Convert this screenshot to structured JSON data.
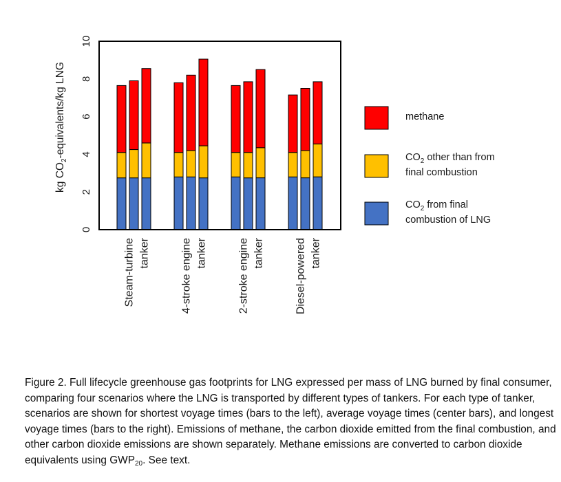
{
  "chart_data": {
    "type": "bar",
    "stacked": true,
    "ylabel_parts": [
      "kg CO",
      "2",
      "-equivalents/kg LNG"
    ],
    "ylim": [
      0,
      10
    ],
    "yticks": [
      "0",
      "2",
      "4",
      "6",
      "8",
      "10"
    ],
    "groups": [
      {
        "label_lines": [
          "Steam-turbine",
          "tanker"
        ]
      },
      {
        "label_lines": [
          "4-stroke engine",
          "tanker"
        ]
      },
      {
        "label_lines": [
          "2-stroke engine",
          "tanker"
        ]
      },
      {
        "label_lines": [
          "Diesel-powered",
          "tanker"
        ]
      }
    ],
    "bars_per_group": [
      "shortest voyage",
      "average voyage",
      "longest voyage"
    ],
    "series": [
      {
        "name": "CO2 from final combustion of LNG",
        "color": "#4472C4",
        "values": [
          [
            2.75,
            2.75,
            2.75
          ],
          [
            2.8,
            2.8,
            2.75
          ],
          [
            2.8,
            2.75,
            2.75
          ],
          [
            2.8,
            2.75,
            2.8
          ]
        ]
      },
      {
        "name": "CO2 other than from final combustion",
        "color": "#FFC000",
        "values": [
          [
            1.35,
            1.5,
            1.85
          ],
          [
            1.3,
            1.4,
            1.7
          ],
          [
            1.3,
            1.35,
            1.6
          ],
          [
            1.3,
            1.45,
            1.75
          ]
        ]
      },
      {
        "name": "methane",
        "color": "#FF0000",
        "values": [
          [
            3.55,
            3.65,
            3.95
          ],
          [
            3.7,
            4.0,
            4.6
          ],
          [
            3.55,
            3.75,
            4.15
          ],
          [
            3.05,
            3.3,
            3.3
          ]
        ]
      }
    ],
    "legend": [
      {
        "color": "#FF0000",
        "lines": [
          [
            "methane"
          ]
        ]
      },
      {
        "color": "#FFC000",
        "lines": [
          [
            "CO",
            "2",
            " other than from"
          ],
          [
            "final combustion"
          ]
        ]
      },
      {
        "color": "#4472C4",
        "lines": [
          [
            "CO",
            "2",
            " from final"
          ],
          [
            "combustion of LNG"
          ]
        ]
      }
    ]
  },
  "caption": {
    "main": "Figure 2.  Full lifecycle greenhouse gas footprints for LNG expressed per mass of LNG burned by final consumer, comparing four scenarios where the LNG is transported by different types of tankers. For each type of tanker, scenarios are shown for shortest voyage times (bars to the left), average voyage times (center bars), and longest voyage times (bars to the right).  Emissions of methane, the carbon dioxide emitted from the final combustion, and other carbon dioxide emissions are shown separately. Methane emissions are converted to carbon dioxide equivalents using GWP",
    "gwp_sub": "20",
    "tail": ".  See text."
  }
}
